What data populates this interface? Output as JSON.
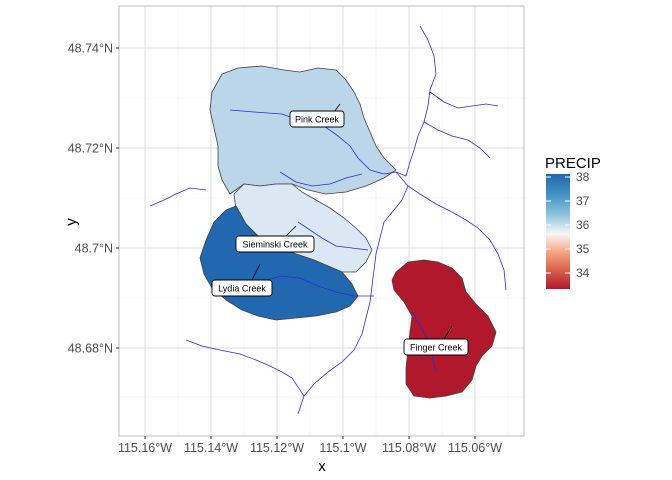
{
  "axes": {
    "x_title": "x",
    "y_title": "y",
    "x_ticks": [
      "115.16°W",
      "115.14°W",
      "115.12°W",
      "115.1°W",
      "115.08°W",
      "115.06°W"
    ],
    "y_ticks": [
      "48.74°N",
      "48.72°N",
      "48.7°N",
      "48.68°N"
    ]
  },
  "legend": {
    "title": "PRECIP",
    "ticks": [
      "38",
      "37",
      "36",
      "35",
      "34"
    ],
    "colors": [
      "#2166ac",
      "#4393c3",
      "#92c5de",
      "#f7f7f7",
      "#f4a582",
      "#d6604d",
      "#b2182b"
    ]
  },
  "basins": [
    {
      "name": "Pink Creek",
      "label": "Pink Creek",
      "fill": "#bad6e8"
    },
    {
      "name": "Sieminski Creek",
      "label": "Sieminski Creek",
      "fill": "#d9e8f3"
    },
    {
      "name": "Lydia Creek",
      "label": "Lydia Creek",
      "fill": "#2268b0"
    },
    {
      "name": "Finger Creek",
      "label": "Finger Creek",
      "fill": "#b2182b"
    }
  ],
  "colors": {
    "stream": "#2b2bdc",
    "basin_border": "#404040",
    "grid_major": "#dedede",
    "grid_minor": "#efefef",
    "panel_border": "#bdbdbd"
  }
}
